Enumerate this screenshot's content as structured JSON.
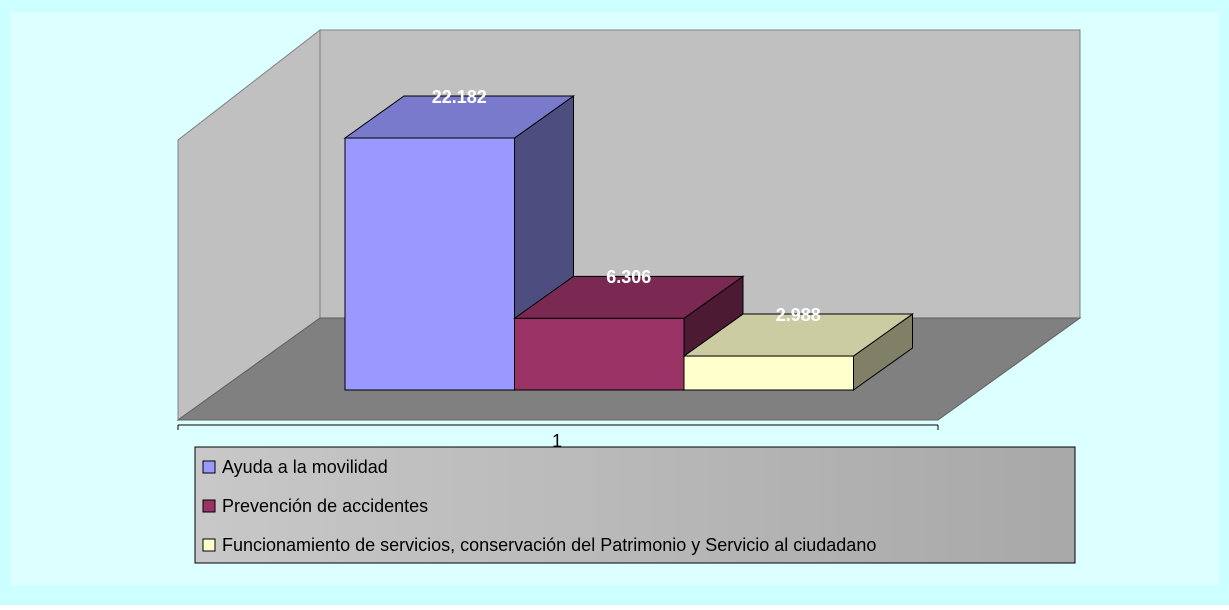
{
  "chart_data": {
    "type": "bar3d",
    "categories": [
      "1"
    ],
    "series": [
      {
        "name": "Ayuda a la movilidad",
        "color": "#9999ff",
        "values": [
          22182
        ],
        "value_labels": [
          "22.182"
        ]
      },
      {
        "name": "Prevención de accidentes",
        "color": "#993366",
        "values": [
          6306
        ],
        "value_labels": [
          "6.306"
        ]
      },
      {
        "name": "Funcionamiento de servicios, conservación del Patrimonio y Servicio al ciudadano",
        "color": "#ffffcc",
        "values": [
          2988
        ],
        "value_labels": [
          "2.988"
        ]
      }
    ],
    "legend": "bottom"
  }
}
